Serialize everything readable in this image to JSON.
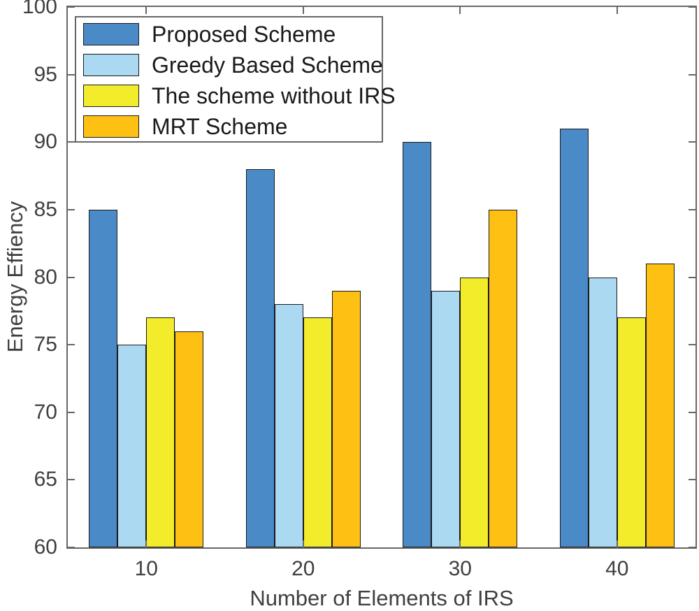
{
  "chart_data": {
    "type": "bar",
    "title": "",
    "xlabel": "Number of Elements of IRS",
    "ylabel": "Energy Effiency",
    "categories": [
      "10",
      "20",
      "30",
      "40"
    ],
    "series": [
      {
        "name": "Proposed Scheme",
        "color": "#4A8AC6",
        "values": [
          85,
          88,
          90,
          91
        ]
      },
      {
        "name": "Greedy Based Scheme",
        "color": "#ABD9F2",
        "values": [
          75,
          78,
          79,
          80
        ]
      },
      {
        "name": "The scheme without IRS",
        "color": "#F2EC2B",
        "values": [
          77,
          77,
          80,
          77
        ]
      },
      {
        "name": "MRT Scheme",
        "color": "#FDC013",
        "values": [
          76,
          79,
          85,
          81
        ]
      }
    ],
    "ylim": [
      60,
      100
    ],
    "yticks": [
      60,
      65,
      70,
      75,
      80,
      85,
      90,
      95,
      100
    ],
    "grid": false,
    "legend_position": "top-left",
    "axis_color": "#666666",
    "tick_label_color": "#3f3f3f",
    "bar_edge_color": "#1a1a1a",
    "background_color": "#ffffff"
  }
}
